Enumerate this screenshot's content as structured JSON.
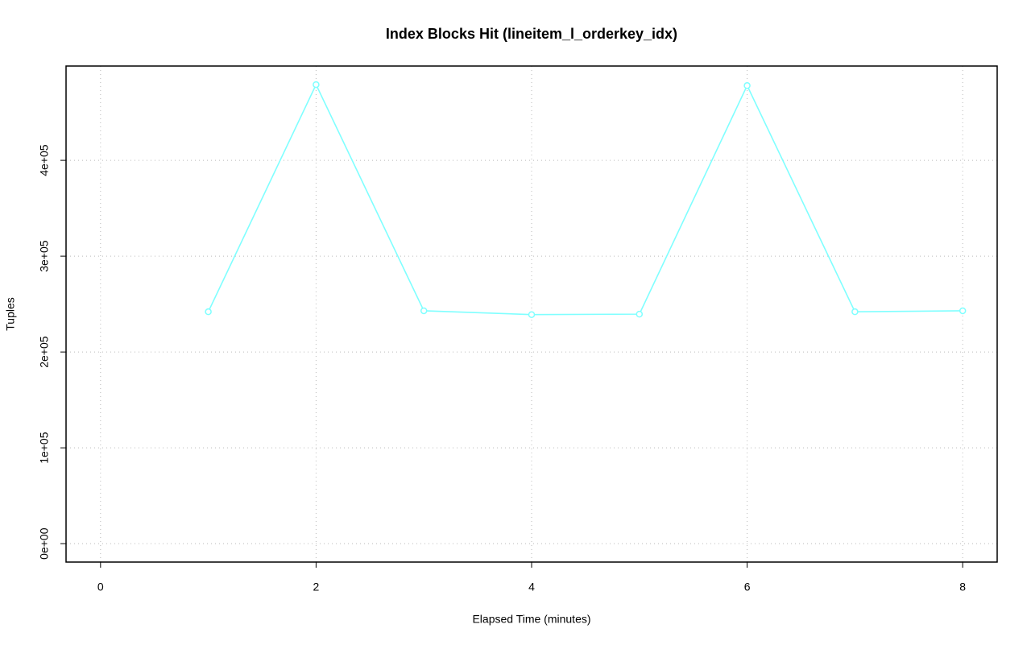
{
  "chart_data": {
    "type": "line",
    "title": "Index Blocks Hit (lineitem_l_orderkey_idx)",
    "x_label": "Elapsed Time (minutes)",
    "y_label": "Tuples",
    "x": [
      1,
      2,
      3,
      4,
      5,
      6,
      7,
      8
    ],
    "series": [
      {
        "color": "#80ffff",
        "values": [
          242000,
          479000,
          243000,
          239000,
          239500,
          478000,
          242000,
          243000
        ]
      }
    ],
    "xlim": [
      -0.32,
      8.32
    ],
    "xticks": [
      0,
      2,
      4,
      6,
      8
    ],
    "ylim": [
      -19200,
      498400
    ],
    "yticks": [
      {
        "value": 0,
        "label": "0e+00"
      },
      {
        "value": 100000,
        "label": "1e+05"
      },
      {
        "value": 200000,
        "label": "2e+05"
      },
      {
        "value": 300000,
        "label": "3e+05"
      },
      {
        "value": 400000,
        "label": "4e+05"
      }
    ],
    "grid": true
  }
}
